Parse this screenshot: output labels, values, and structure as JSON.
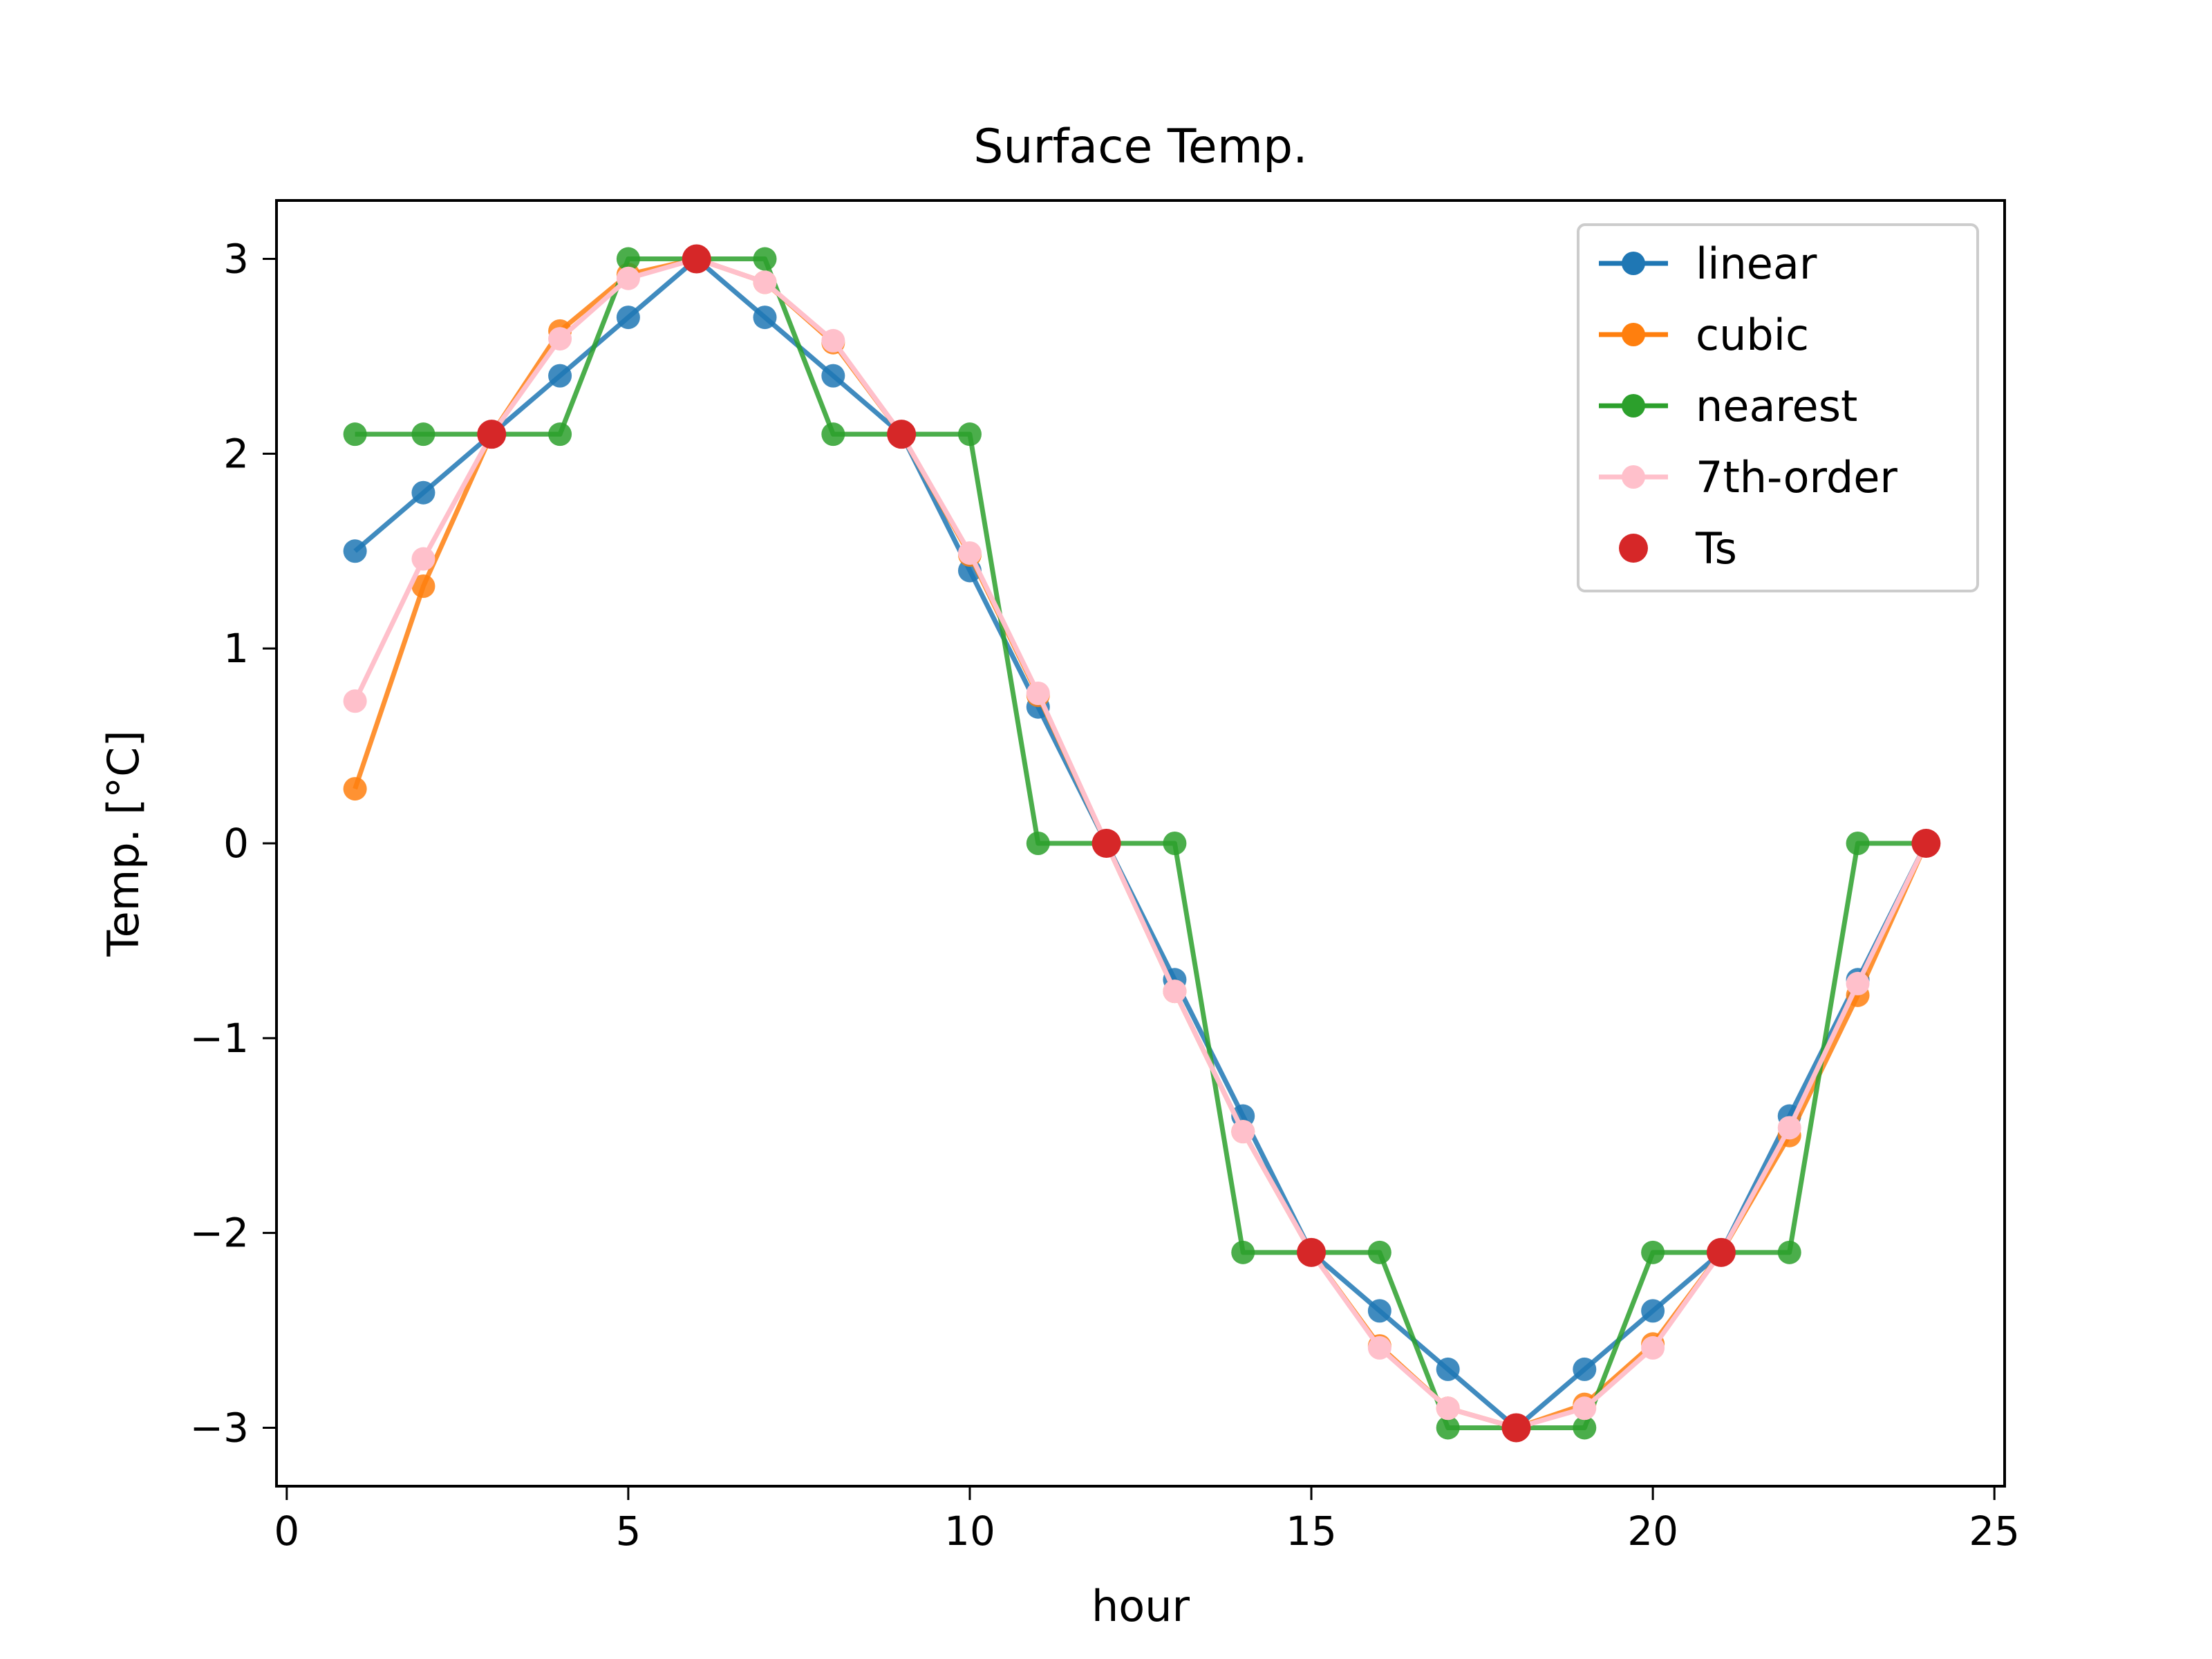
{
  "chart_data": {
    "type": "line",
    "title": "Surface Temp.",
    "xlabel": "hour",
    "ylabel": "Temp. [°C]",
    "xlim": [
      -0.15,
      25.15
    ],
    "ylim": [
      -3.3,
      3.3
    ],
    "xticks": [
      0,
      5,
      10,
      15,
      20,
      25
    ],
    "xtick_labels": [
      "0",
      "5",
      "10",
      "15",
      "20",
      "25"
    ],
    "yticks": [
      -3,
      -2,
      -1,
      0,
      1,
      2,
      3
    ],
    "ytick_labels": [
      "−3",
      "−2",
      "−1",
      "0",
      "1",
      "2",
      "3"
    ],
    "grid": false,
    "legend_position": "top-right",
    "series": [
      {
        "name": "linear",
        "color": "#1f77b4",
        "style": "line-marker",
        "x": [
          1,
          2,
          3,
          4,
          5,
          6,
          7,
          8,
          9,
          10,
          11,
          12,
          13,
          14,
          15,
          16,
          17,
          18,
          19,
          20,
          21,
          22,
          23,
          24
        ],
        "y": [
          1.5,
          1.8,
          2.1,
          2.4,
          2.7,
          3.0,
          2.7,
          2.4,
          2.1,
          1.4,
          0.7,
          0.0,
          -0.7,
          -1.4,
          -2.1,
          -2.4,
          -2.7,
          -3.0,
          -2.7,
          -2.4,
          -2.1,
          -1.4,
          -0.7,
          0.0
        ]
      },
      {
        "name": "cubic",
        "color": "#ff7f0e",
        "style": "line-marker",
        "x": [
          1,
          2,
          3,
          4,
          5,
          6,
          7,
          8,
          9,
          10,
          11,
          12,
          13,
          14,
          15,
          16,
          17,
          18,
          19,
          20,
          21,
          22,
          23,
          24
        ],
        "y": [
          0.28,
          1.32,
          2.1,
          2.63,
          2.92,
          3.0,
          2.88,
          2.57,
          2.1,
          1.48,
          0.76,
          0.0,
          -0.76,
          -1.48,
          -2.1,
          -2.58,
          -2.9,
          -3.0,
          -2.88,
          -2.57,
          -2.1,
          -1.5,
          -0.78,
          0.0
        ]
      },
      {
        "name": "nearest",
        "color": "#2ca02c",
        "style": "line-marker",
        "x": [
          1,
          2,
          3,
          4,
          5,
          6,
          7,
          8,
          9,
          10,
          11,
          12,
          13,
          14,
          15,
          16,
          17,
          18,
          19,
          20,
          21,
          22,
          23,
          24
        ],
        "y": [
          2.1,
          2.1,
          2.1,
          2.1,
          3.0,
          3.0,
          3.0,
          2.1,
          2.1,
          2.1,
          0.0,
          0.0,
          0.0,
          -2.1,
          -2.1,
          -2.1,
          -3.0,
          -3.0,
          -3.0,
          -2.1,
          -2.1,
          -2.1,
          0.0,
          0.0
        ]
      },
      {
        "name": "7th-order",
        "color": "#ffc0cb",
        "style": "line-marker",
        "x": [
          1,
          2,
          3,
          4,
          5,
          6,
          7,
          8,
          9,
          10,
          11,
          12,
          13,
          14,
          15,
          16,
          17,
          18,
          19,
          20,
          21,
          22,
          23,
          24
        ],
        "y": [
          0.73,
          1.46,
          2.1,
          2.59,
          2.9,
          3.0,
          2.88,
          2.58,
          2.1,
          1.49,
          0.77,
          0.0,
          -0.76,
          -1.48,
          -2.1,
          -2.59,
          -2.9,
          -3.0,
          -2.9,
          -2.59,
          -2.1,
          -1.46,
          -0.72,
          0.0
        ]
      },
      {
        "name": "Ts",
        "color": "#d62728",
        "style": "marker",
        "x": [
          3,
          6,
          9,
          12,
          15,
          18,
          21,
          24
        ],
        "y": [
          2.1,
          3.0,
          2.1,
          0.0,
          -2.1,
          -3.0,
          -2.1,
          0.0
        ]
      }
    ]
  }
}
